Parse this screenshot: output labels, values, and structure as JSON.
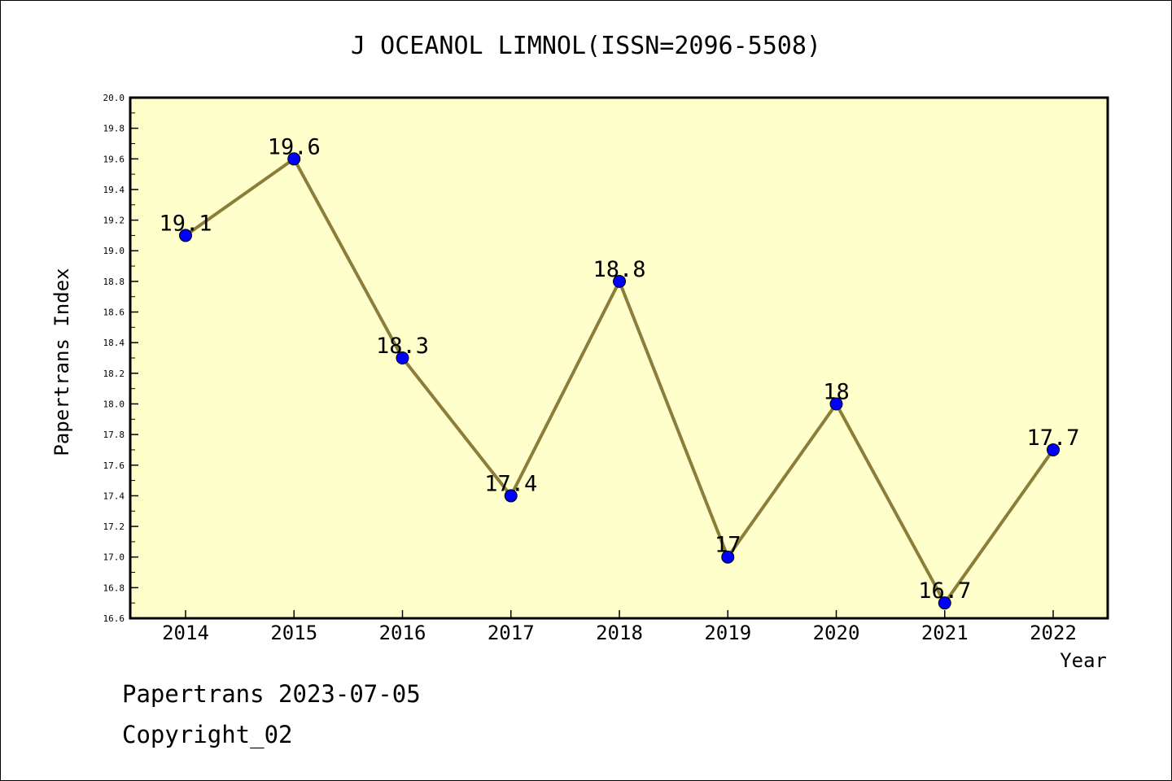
{
  "chart_data": {
    "type": "line",
    "title": "J OCEANOL LIMNOL(ISSN=2096-5508)",
    "xlabel": "Year",
    "ylabel": "Papertrans Index",
    "categories": [
      "2014",
      "2015",
      "2016",
      "2017",
      "2018",
      "2019",
      "2020",
      "2021",
      "2022"
    ],
    "values": [
      19.1,
      19.6,
      18.3,
      17.4,
      18.8,
      17.0,
      18.0,
      16.7,
      17.7
    ],
    "data_labels": [
      "19.1",
      "19.6",
      "18.3",
      "17.4",
      "18.8",
      "17",
      "18",
      "16.7",
      "17.7"
    ],
    "ylim": [
      16.6,
      20.0
    ],
    "ytick_step": 0.2,
    "yticks": [
      "16.6",
      "16.8",
      "17.0",
      "17.2",
      "17.4",
      "17.6",
      "17.8",
      "18.0",
      "18.2",
      "18.4",
      "18.6",
      "18.8",
      "19.0",
      "19.2",
      "19.4",
      "19.6",
      "19.8",
      "20.0"
    ],
    "grid": false,
    "legend": "none",
    "colors": {
      "plot_background": "#ffffcc",
      "line": "#8b7d3a",
      "marker": "#0000ff"
    }
  },
  "footer": {
    "line1": "Papertrans 2023-07-05",
    "line2": "Copyright_02"
  }
}
